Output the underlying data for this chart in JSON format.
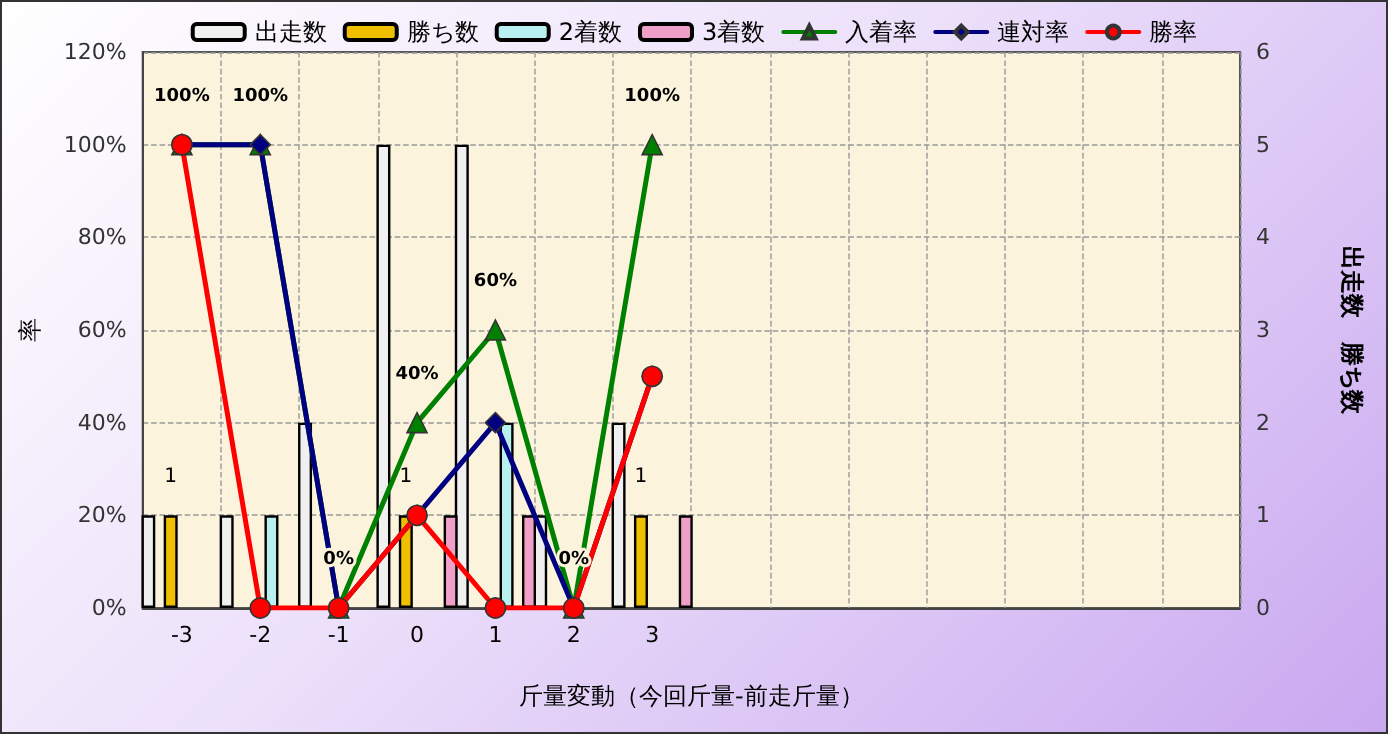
{
  "chart_data": {
    "type": "bar",
    "xlabel": "斤量変動（今回斤量-前走斤量）",
    "ylabel": "率",
    "y2label": "出走数　勝ち数",
    "categories": [
      "-3",
      "-2",
      "-1",
      "0",
      "1",
      "2",
      "3",
      null,
      null,
      null,
      null,
      null,
      null,
      null
    ],
    "series": [
      {
        "name": "出走数",
        "color": "#f0f0f0",
        "axis": "y2",
        "values": [
          1,
          1,
          2,
          5,
          5,
          1,
          2,
          null,
          null,
          null,
          null,
          null,
          null,
          null
        ]
      },
      {
        "name": "勝ち数",
        "color": "#f0c000",
        "axis": "y2",
        "values": [
          1,
          0,
          0,
          1,
          0,
          0,
          1,
          null,
          null,
          null,
          null,
          null,
          null,
          null
        ],
        "value_labels": [
          "1",
          null,
          null,
          "1",
          null,
          null,
          "1",
          null,
          null,
          null,
          null,
          null,
          null,
          null
        ]
      },
      {
        "name": "2着数",
        "color": "#b8f0f0",
        "axis": "y2",
        "values": [
          0,
          1,
          0,
          0,
          2,
          0,
          0,
          null,
          null,
          null,
          null,
          null,
          null,
          null
        ]
      },
      {
        "name": "3着数",
        "color": "#f0a0c8",
        "axis": "y2",
        "values": [
          0,
          0,
          0,
          1,
          1,
          0,
          1,
          null,
          null,
          null,
          null,
          null,
          null,
          null
        ]
      },
      {
        "name": "入着率",
        "type": "line",
        "color": "#008000",
        "marker": "triangle",
        "values": [
          100,
          100,
          0,
          40,
          60,
          0,
          100,
          null,
          null,
          null,
          null,
          null,
          null,
          null
        ],
        "value_labels": [
          "100%",
          "100%",
          "0%",
          "40%",
          "60%",
          "0%",
          "100%",
          null,
          null,
          null,
          null,
          null,
          null,
          null
        ]
      },
      {
        "name": "連対率",
        "type": "line",
        "color": "#000080",
        "marker": "diamond",
        "values": [
          100,
          100,
          0,
          20,
          40,
          0,
          50,
          null,
          null,
          null,
          null,
          null,
          null,
          null
        ]
      },
      {
        "name": "勝率",
        "type": "line",
        "color": "#ff0000",
        "marker": "circle",
        "values": [
          100,
          0,
          0,
          20,
          0,
          0,
          50,
          null,
          null,
          null,
          null,
          null,
          null,
          null
        ]
      }
    ],
    "ylim": [
      0,
      120
    ],
    "yticks": [
      {
        "value": 0,
        "label": "0%"
      },
      {
        "value": 20,
        "label": "20%"
      },
      {
        "value": 40,
        "label": "40%"
      },
      {
        "value": 60,
        "label": "60%"
      },
      {
        "value": 80,
        "label": "80%"
      },
      {
        "value": 100,
        "label": "100%"
      },
      {
        "value": 120,
        "label": "120%"
      }
    ],
    "y2lim": [
      0,
      6
    ],
    "y2ticks": [
      0,
      1,
      2,
      3,
      4,
      5,
      6
    ],
    "grid": true,
    "legend": "top"
  }
}
